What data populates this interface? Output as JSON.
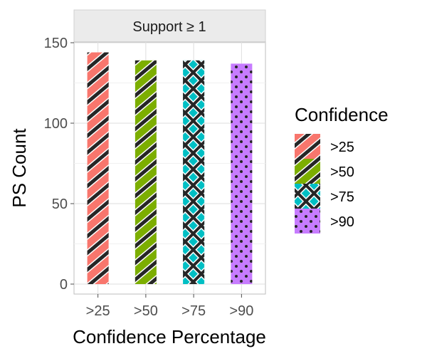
{
  "chart_data": {
    "type": "bar",
    "facet_label": "Support  ≥ 1",
    "categories": [
      ">25",
      ">50",
      ">75",
      ">90"
    ],
    "values": [
      144,
      139,
      139,
      137
    ],
    "fill_colors": [
      "#F8766D",
      "#7CAE00",
      "#00BFC4",
      "#C77CFF"
    ],
    "patterns": [
      "stripe",
      "stripe",
      "crosshatch",
      "dots"
    ],
    "xlabel": "Confidence Percentage",
    "ylabel": "PS Count",
    "ylim": [
      0,
      150
    ],
    "yticks": [
      0,
      50,
      100,
      150
    ],
    "grid": true,
    "legend": {
      "title": "Confidence",
      "placement": "right",
      "items": [
        ">25",
        ">50",
        ">75",
        ">90"
      ]
    }
  }
}
